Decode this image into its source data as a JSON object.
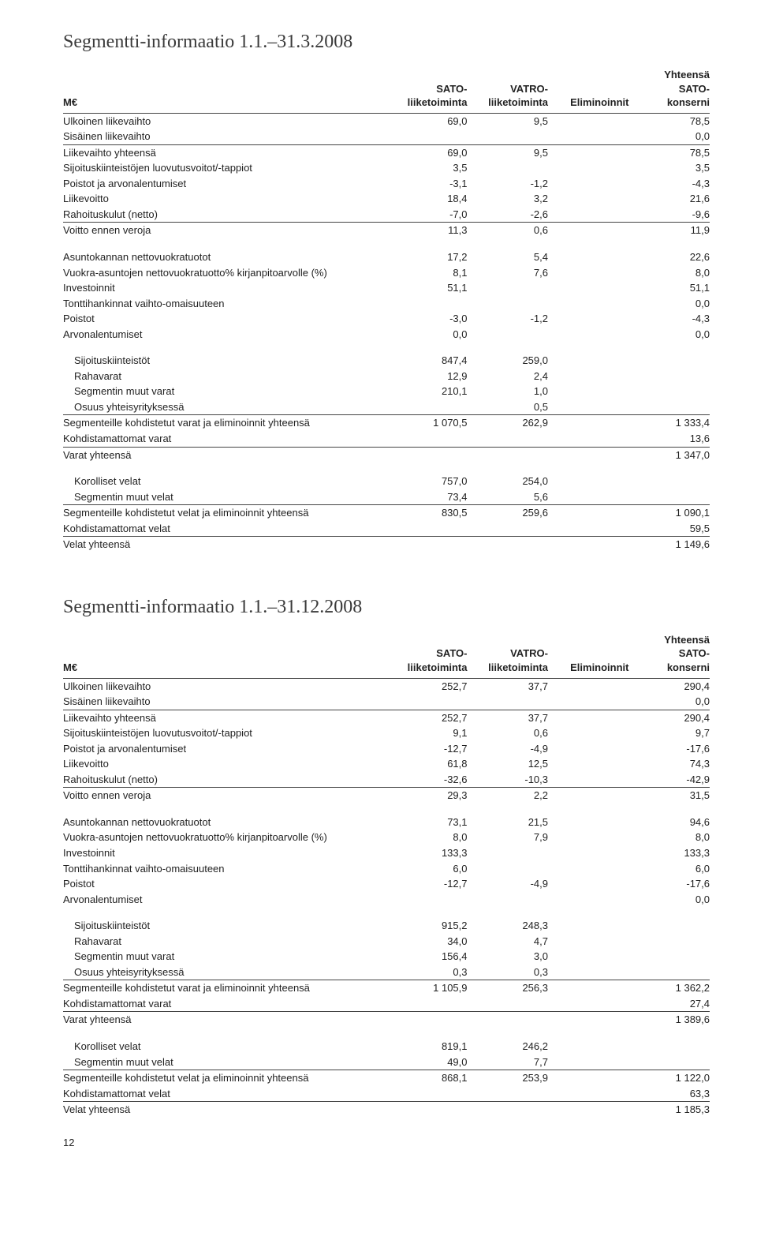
{
  "heading1": "Segmentti-informaatio 1.1.–31.3.2008",
  "heading2": "Segmentti-informaatio 1.1.–31.12.2008",
  "pageNumber": "12",
  "headers": {
    "meur": "M€",
    "sato": "SATO-\nliiketoiminta",
    "vatro": "VATRO-\nliiketoiminta",
    "elim": "Eliminoinnit",
    "total": "Yhteensä\nSATO-\nkonserni"
  },
  "labels": {
    "ulk": "Ulkoinen liikevaihto",
    "sis": "Sisäinen liikevaihto",
    "lvy": "Liikevaihto yhteensä",
    "sij": "Sijoituskiinteistöjen luovutusvoitot/-tappiot",
    "pja": "Poistot ja arvonalentumiset",
    "lvo": "Liikevoitto",
    "rah": "Rahoituskulut (netto)",
    "vev": "Voitto ennen veroja",
    "ant": "Asuntokannan nettovuokratuotot",
    "vak": "Vuokra-asuntojen nettovuokratuotto% kirjanpitoarvolle (%)",
    "inv": "Investoinnit",
    "ton": "Tonttihankinnat vaihto-omaisuuteen",
    "poi": "Poistot",
    "arv": "Arvonalentumiset",
    "sjk": "Sijoituskiinteistöt",
    "rva": "Rahavarat",
    "smv": "Segmentin muut varat",
    "oyy": "Osuus yhteisyrityksessä",
    "skv": "Segmenteille kohdistetut varat ja eliminoinnit yhteensä",
    "kmv": "Kohdistamattomat varat",
    "vay": "Varat yhteensä",
    "kov": "Korolliset velat",
    "smvl": "Segmentin muut velat",
    "skvl": "Segmenteille kohdistetut velat ja eliminoinnit yhteensä",
    "kmvl": "Kohdistamattomat velat",
    "vly": "Velat yhteensä"
  },
  "t1": {
    "ulk": [
      "69,0",
      "9,5",
      "",
      "78,5"
    ],
    "sis": [
      "",
      "",
      "",
      "0,0"
    ],
    "lvy": [
      "69,0",
      "9,5",
      "",
      "78,5"
    ],
    "sij": [
      "3,5",
      "",
      "",
      "3,5"
    ],
    "pja": [
      "-3,1",
      "-1,2",
      "",
      "-4,3"
    ],
    "lvo": [
      "18,4",
      "3,2",
      "",
      "21,6"
    ],
    "rah": [
      "-7,0",
      "-2,6",
      "",
      "-9,6"
    ],
    "vev": [
      "11,3",
      "0,6",
      "",
      "11,9"
    ],
    "ant": [
      "17,2",
      "5,4",
      "",
      "22,6"
    ],
    "vak": [
      "8,1",
      "7,6",
      "",
      "8,0"
    ],
    "inv": [
      "51,1",
      "",
      "",
      "51,1"
    ],
    "ton": [
      "",
      "",
      "",
      "0,0"
    ],
    "poi": [
      "-3,0",
      "-1,2",
      "",
      "-4,3"
    ],
    "arv": [
      "0,0",
      "",
      "",
      "0,0"
    ],
    "sjk": [
      "847,4",
      "259,0",
      "",
      ""
    ],
    "rva": [
      "12,9",
      "2,4",
      "",
      ""
    ],
    "smv": [
      "210,1",
      "1,0",
      "",
      ""
    ],
    "oyy": [
      "",
      "0,5",
      "",
      ""
    ],
    "skv": [
      "1 070,5",
      "262,9",
      "",
      "1 333,4"
    ],
    "kmv": [
      "",
      "",
      "",
      "13,6"
    ],
    "vay": [
      "",
      "",
      "",
      "1 347,0"
    ],
    "kov": [
      "757,0",
      "254,0",
      "",
      ""
    ],
    "smvl": [
      "73,4",
      "5,6",
      "",
      ""
    ],
    "skvl": [
      "830,5",
      "259,6",
      "",
      "1 090,1"
    ],
    "kmvl": [
      "",
      "",
      "",
      "59,5"
    ],
    "vly": [
      "",
      "",
      "",
      "1 149,6"
    ]
  },
  "t2": {
    "ulk": [
      "252,7",
      "37,7",
      "",
      "290,4"
    ],
    "sis": [
      "",
      "",
      "",
      "0,0"
    ],
    "lvy": [
      "252,7",
      "37,7",
      "",
      "290,4"
    ],
    "sij": [
      "9,1",
      "0,6",
      "",
      "9,7"
    ],
    "pja": [
      "-12,7",
      "-4,9",
      "",
      "-17,6"
    ],
    "lvo": [
      "61,8",
      "12,5",
      "",
      "74,3"
    ],
    "rah": [
      "-32,6",
      "-10,3",
      "",
      "-42,9"
    ],
    "vev": [
      "29,3",
      "2,2",
      "",
      "31,5"
    ],
    "ant": [
      "73,1",
      "21,5",
      "",
      "94,6"
    ],
    "vak": [
      "8,0",
      "7,9",
      "",
      "8,0"
    ],
    "inv": [
      "133,3",
      "",
      "",
      "133,3"
    ],
    "ton": [
      "6,0",
      "",
      "",
      "6,0"
    ],
    "poi": [
      "-12,7",
      "-4,9",
      "",
      "-17,6"
    ],
    "arv": [
      "",
      "",
      "",
      "0,0"
    ],
    "sjk": [
      "915,2",
      "248,3",
      "",
      ""
    ],
    "rva": [
      "34,0",
      "4,7",
      "",
      ""
    ],
    "smv": [
      "156,4",
      "3,0",
      "",
      ""
    ],
    "oyy": [
      "0,3",
      "0,3",
      "",
      ""
    ],
    "skv": [
      "1 105,9",
      "256,3",
      "",
      "1 362,2"
    ],
    "kmv": [
      "",
      "",
      "",
      "27,4"
    ],
    "vay": [
      "",
      "",
      "",
      "1 389,6"
    ],
    "kov": [
      "819,1",
      "246,2",
      "",
      ""
    ],
    "smvl": [
      "49,0",
      "7,7",
      "",
      ""
    ],
    "skvl": [
      "868,1",
      "253,9",
      "",
      "1 122,0"
    ],
    "kmvl": [
      "",
      "",
      "",
      "63,3"
    ],
    "vly": [
      "",
      "",
      "",
      "1 185,3"
    ]
  }
}
